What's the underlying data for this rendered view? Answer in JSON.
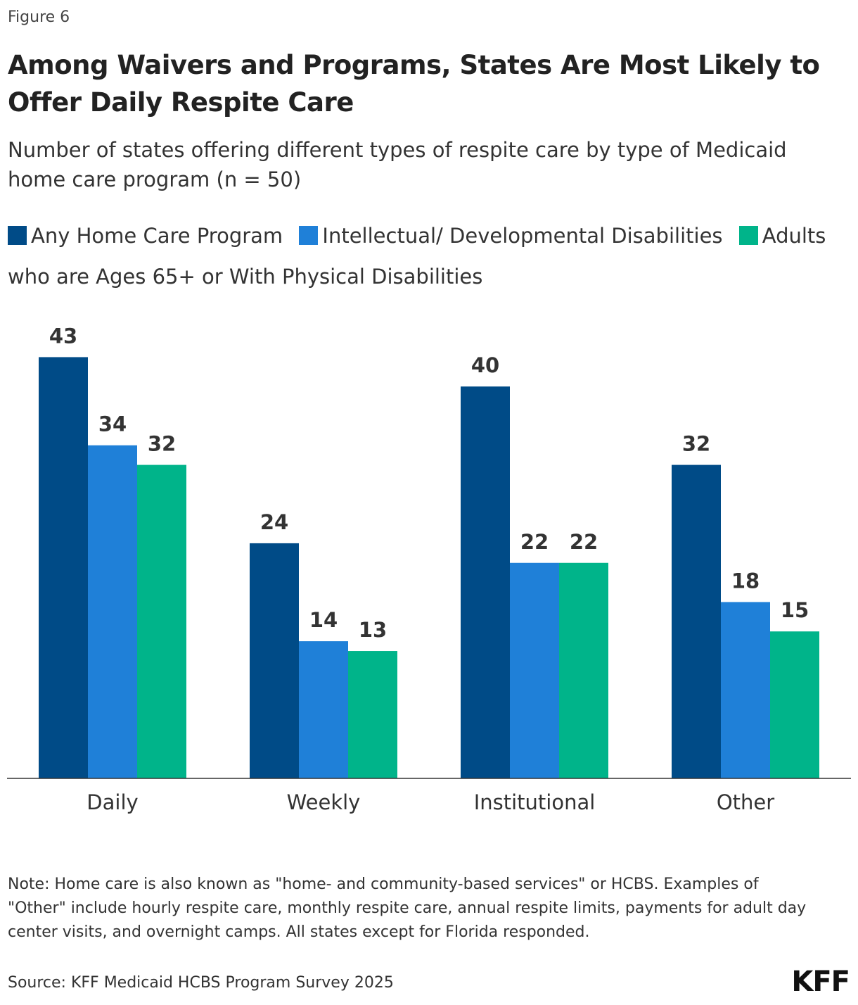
{
  "figure_label": "Figure 6",
  "logo": "KFF",
  "note": "Note: Home care is also known as \"home- and community-based services\" or HCBS. Examples of \"Other\" include hourly respite care, monthly respite care, annual respite limits, payments for adult day center visits, and overnight camps. All states except for Florida responded.",
  "source": "Source: KFF Medicaid HCBS Program Survey 2025",
  "chart_data": {
    "type": "bar",
    "title": "Among Waivers and Programs, States Are Most Likely to Offer Daily Respite Care",
    "subtitle": "Number of states offering different types of respite care by type of Medicaid home care program (n = 50)",
    "categories": [
      "Daily",
      "Weekly",
      "Institutional",
      "Other"
    ],
    "series": [
      {
        "name": "Any Home Care Program",
        "color": "#004b87",
        "values": [
          43,
          24,
          40,
          32
        ]
      },
      {
        "name": "Intellectual/ Developmental Disabilities",
        "color": "#1f80d8",
        "values": [
          34,
          14,
          22,
          18
        ]
      },
      {
        "name": "Adults who are Ages 65+ or With Physical Disabilities",
        "color": "#00b48a",
        "values": [
          32,
          13,
          22,
          15
        ]
      }
    ],
    "ylim": [
      0,
      50
    ],
    "grid": false,
    "legend": "top",
    "data_labels": true
  }
}
